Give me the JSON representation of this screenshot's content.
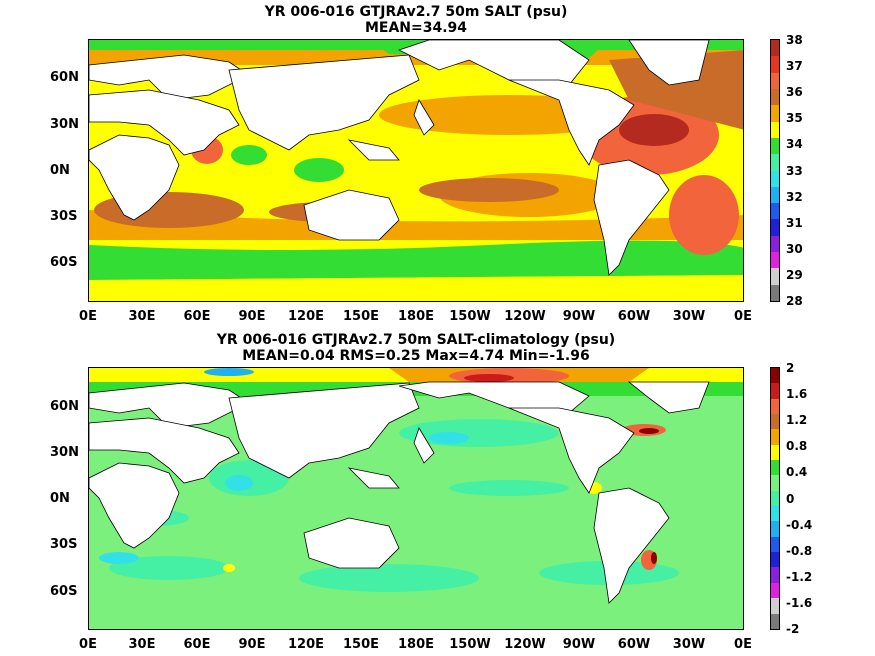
{
  "panels": [
    {
      "title_line1": "YR 006-016 GTJRAv2.7 50m SALT (psu)",
      "title_line2": "MEAN=34.94",
      "colorbar_labels": [
        "38",
        "37",
        "36",
        "35",
        "34",
        "33",
        "32",
        "31",
        "30",
        "29",
        "28"
      ],
      "colorbar_colors": [
        "#b52a1f",
        "#e8361e",
        "#f2643c",
        "#c96c2a",
        "#f3a400",
        "#ffff00",
        "#33dd33",
        "#45f0a4",
        "#32e0e8",
        "#1eb0f0",
        "#1e5af0",
        "#2020d8",
        "#8c1ee0",
        "#e020e0",
        "#cfcfcf",
        "#7a7a7a"
      ]
    },
    {
      "title_line1": "YR 006-016 GTJRAv2.7 50m SALT-climatology (psu)",
      "title_line2": "MEAN=0.04   RMS=0.25   Max=4.74   Min=-1.96",
      "colorbar_labels": [
        "2",
        "1.6",
        "1.2",
        "0.8",
        "0.4",
        "0",
        "-0.4",
        "-0.8",
        "-1.2",
        "-1.6",
        "-2"
      ],
      "colorbar_colors": [
        "#8b0000",
        "#cc1a1a",
        "#f2643c",
        "#c96c2a",
        "#f3a400",
        "#ffff00",
        "#33dd33",
        "#7cf07c",
        "#45f0a4",
        "#32e0e8",
        "#1eb0f0",
        "#1e5af0",
        "#2020d8",
        "#8c1ee0",
        "#e020e0",
        "#cfcfcf",
        "#7a7a7a"
      ]
    }
  ],
  "lat_labels": [
    "60N",
    "30N",
    "0N",
    "30S",
    "60S"
  ],
  "lon_labels": [
    "0E",
    "30E",
    "60E",
    "90E",
    "120E",
    "150E",
    "180E",
    "150W",
    "120W",
    "90W",
    "60W",
    "30W",
    "0E"
  ]
}
